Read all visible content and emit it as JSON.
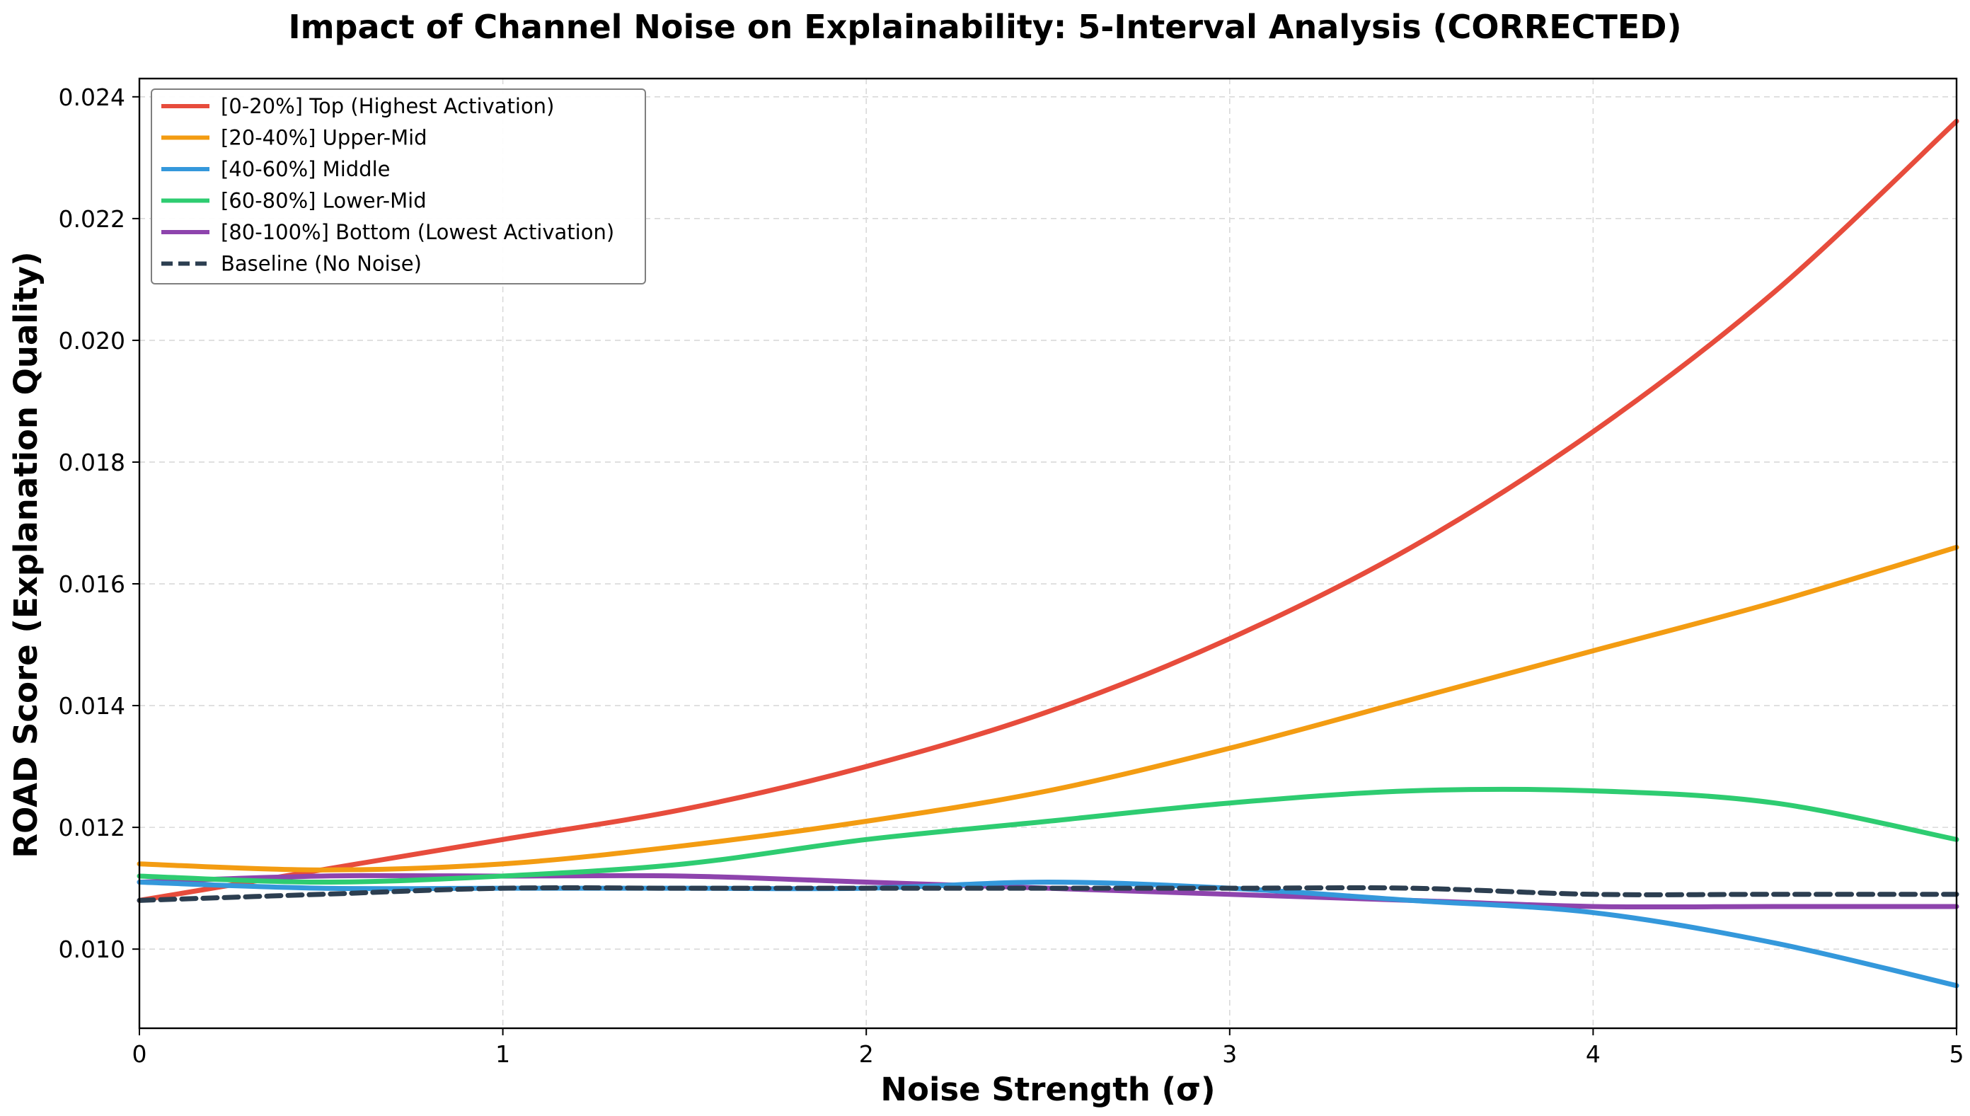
{
  "chart_data": {
    "type": "line",
    "title": "Impact of Channel Noise on Explainability: 5-Interval Analysis (CORRECTED)",
    "xlabel": "Noise Strength (σ)",
    "ylabel": "ROAD Score (Explanation Quality)",
    "xlim": [
      0,
      5
    ],
    "ylim": [
      0.0087,
      0.0243
    ],
    "x_ticks": [
      0,
      1,
      2,
      3,
      4,
      5
    ],
    "x_tick_labels": [
      "0",
      "1",
      "2",
      "3",
      "4",
      "5"
    ],
    "y_ticks": [
      0.01,
      0.012,
      0.014,
      0.016,
      0.018,
      0.02,
      0.022,
      0.024
    ],
    "y_tick_labels": [
      "0.010",
      "0.012",
      "0.014",
      "0.016",
      "0.018",
      "0.020",
      "0.022",
      "0.024"
    ],
    "grid": true,
    "legend_position": "top-left",
    "series": [
      {
        "name": "[0-20%] Top (Highest Activation)",
        "color": "#e74c3c",
        "line_style": "solid",
        "x": [
          0,
          0.5,
          1,
          1.5,
          2,
          2.5,
          3,
          3.5,
          4,
          4.5,
          5
        ],
        "y": [
          0.0108,
          0.0113,
          0.0118,
          0.0123,
          0.013,
          0.0139,
          0.0151,
          0.0166,
          0.0185,
          0.0208,
          0.0236
        ]
      },
      {
        "name": "[20-40%] Upper-Mid",
        "color": "#f39c12",
        "line_style": "solid",
        "x": [
          0,
          0.5,
          1,
          1.5,
          2,
          2.5,
          3,
          3.5,
          4,
          4.5,
          5
        ],
        "y": [
          0.0114,
          0.0113,
          0.0114,
          0.0117,
          0.0121,
          0.0126,
          0.0133,
          0.0141,
          0.0149,
          0.0157,
          0.0166
        ]
      },
      {
        "name": "[40-60%] Middle",
        "color": "#3498db",
        "line_style": "solid",
        "x": [
          0,
          0.5,
          1,
          1.5,
          2,
          2.5,
          3,
          3.5,
          4,
          4.5,
          5
        ],
        "y": [
          0.0111,
          0.011,
          0.011,
          0.011,
          0.011,
          0.0111,
          0.011,
          0.0108,
          0.0106,
          0.0101,
          0.0094
        ]
      },
      {
        "name": "[60-80%] Lower-Mid",
        "color": "#2ecc71",
        "line_style": "solid",
        "x": [
          0,
          0.5,
          1,
          1.5,
          2,
          2.5,
          3,
          3.5,
          4,
          4.5,
          5
        ],
        "y": [
          0.0112,
          0.0111,
          0.0112,
          0.0114,
          0.0118,
          0.0121,
          0.0124,
          0.0126,
          0.0126,
          0.0124,
          0.0118
        ]
      },
      {
        "name": "[80-100%] Bottom (Lowest Activation)",
        "color": "#8e44ad",
        "line_style": "solid",
        "x": [
          0,
          0.5,
          1,
          1.5,
          2,
          2.5,
          3,
          3.5,
          4,
          4.5,
          5
        ],
        "y": [
          0.0111,
          0.0112,
          0.0112,
          0.0112,
          0.0111,
          0.011,
          0.0109,
          0.0108,
          0.0107,
          0.0107,
          0.0107
        ]
      },
      {
        "name": "Baseline (No Noise)",
        "color": "#2c3e50",
        "line_style": "dashed",
        "x": [
          0,
          0.5,
          1,
          1.5,
          2,
          2.5,
          3,
          3.5,
          4,
          4.5,
          5
        ],
        "y": [
          0.0108,
          0.0109,
          0.011,
          0.011,
          0.011,
          0.011,
          0.011,
          0.011,
          0.0109,
          0.0109,
          0.0109
        ]
      }
    ]
  }
}
